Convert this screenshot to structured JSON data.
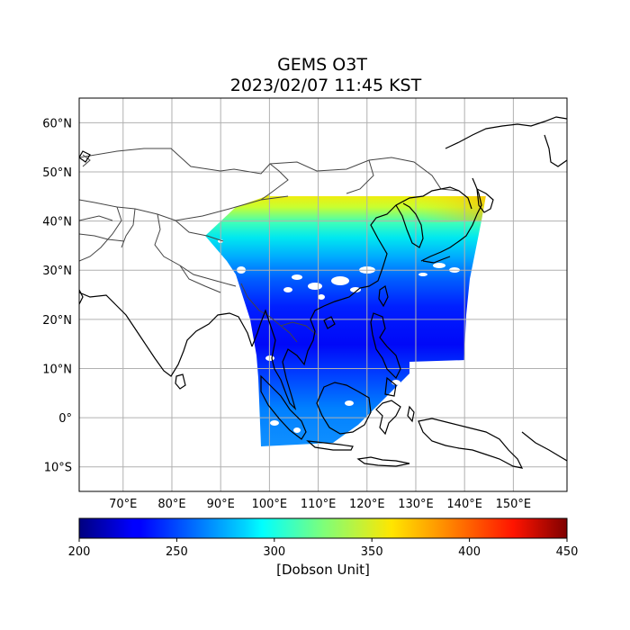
{
  "title": {
    "line1": "GEMS O3T",
    "line2": "2023/02/07 11:45 KST"
  },
  "map": {
    "lon_range": [
      61,
      161
    ],
    "lat_range": [
      -15,
      65
    ],
    "grid": true,
    "lon_ticks": [
      {
        "lon": 70,
        "label": "70°E"
      },
      {
        "lon": 80,
        "label": "80°E"
      },
      {
        "lon": 90,
        "label": "90°E"
      },
      {
        "lon": 100,
        "label": "100°E"
      },
      {
        "lon": 110,
        "label": "110°E"
      },
      {
        "lon": 120,
        "label": "120°E"
      },
      {
        "lon": 130,
        "label": "130°E"
      },
      {
        "lon": 140,
        "label": "140°E"
      },
      {
        "lon": 150,
        "label": "150°E"
      }
    ],
    "lat_ticks": [
      {
        "lat": 60,
        "label": "60°N"
      },
      {
        "lat": 50,
        "label": "50°N"
      },
      {
        "lat": 40,
        "label": "40°N"
      },
      {
        "lat": 30,
        "label": "30°N"
      },
      {
        "lat": 20,
        "label": "20°N"
      },
      {
        "lat": 10,
        "label": "10°N"
      },
      {
        "lat": 0,
        "label": "0°"
      },
      {
        "lat": -10,
        "label": "10°S"
      }
    ]
  },
  "colorbar": {
    "min": 200,
    "max": 450,
    "ticks": [
      "200",
      "250",
      "300",
      "350",
      "400",
      "450"
    ],
    "label": "[Dobson Unit]",
    "colormap": "jet"
  },
  "colors": {
    "coastline": "#000000",
    "borders": "#444444",
    "grid": "#b0b0b0"
  }
}
